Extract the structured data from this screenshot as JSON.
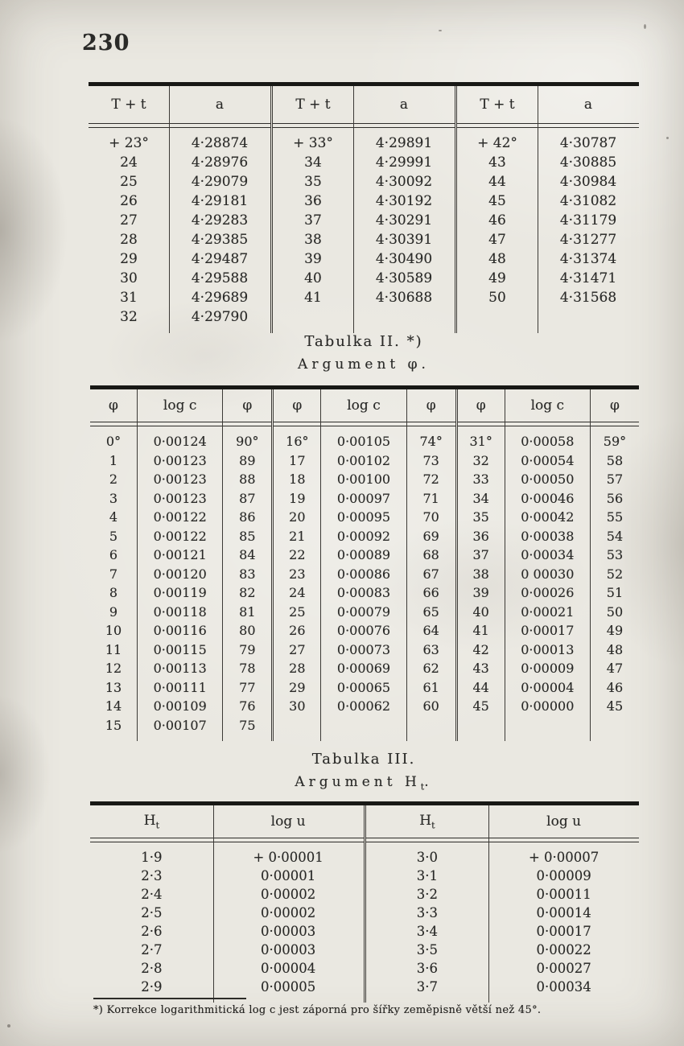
{
  "page_number": "230",
  "table1": {
    "headers": [
      "T + t",
      "a",
      "T + t",
      "a",
      "T + t",
      "a"
    ],
    "groups": [
      {
        "rows": [
          [
            "+ 23°",
            "4·28874"
          ],
          [
            "24",
            "4·28976"
          ],
          [
            "25",
            "4·29079"
          ],
          [
            "26",
            "4·29181"
          ],
          [
            "27",
            "4·29283"
          ],
          [
            "28",
            "4·29385"
          ],
          [
            "29",
            "4·29487"
          ],
          [
            "30",
            "4·29588"
          ],
          [
            "31",
            "4·29689"
          ],
          [
            "32",
            "4·29790"
          ]
        ]
      },
      {
        "rows": [
          [
            "+ 33°",
            "4·29891"
          ],
          [
            "34",
            "4·29991"
          ],
          [
            "35",
            "4·30092"
          ],
          [
            "36",
            "4·30192"
          ],
          [
            "37",
            "4·30291"
          ],
          [
            "38",
            "4·30391"
          ],
          [
            "39",
            "4·30490"
          ],
          [
            "40",
            "4·30589"
          ],
          [
            "41",
            "4·30688"
          ]
        ]
      },
      {
        "rows": [
          [
            "+ 42°",
            "4·30787"
          ],
          [
            "43",
            "4·30885"
          ],
          [
            "44",
            "4·30984"
          ],
          [
            "45",
            "4·31082"
          ],
          [
            "46",
            "4·31179"
          ],
          [
            "47",
            "4·31277"
          ],
          [
            "48",
            "4·31374"
          ],
          [
            "49",
            "4·31471"
          ],
          [
            "50",
            "4·31568"
          ]
        ]
      }
    ]
  },
  "table2": {
    "title": "Tabulka II. *)",
    "subtitle": "Argument φ.",
    "headers": [
      "φ",
      "log c",
      "φ",
      "φ",
      "log c",
      "φ",
      "φ",
      "log c",
      "φ"
    ],
    "groups": [
      {
        "rows": [
          [
            "0°",
            "0·00124",
            "90°"
          ],
          [
            "1",
            "0·00123",
            "89"
          ],
          [
            "2",
            "0·00123",
            "88"
          ],
          [
            "3",
            "0·00123",
            "87"
          ],
          [
            "4",
            "0·00122",
            "86"
          ],
          [
            "5",
            "0·00122",
            "85"
          ],
          [
            "6",
            "0·00121",
            "84"
          ],
          [
            "7",
            "0·00120",
            "83"
          ],
          [
            "8",
            "0·00119",
            "82"
          ],
          [
            "9",
            "0·00118",
            "81"
          ],
          [
            "10",
            "0·00116",
            "80"
          ],
          [
            "11",
            "0·00115",
            "79"
          ],
          [
            "12",
            "0·00113",
            "78"
          ],
          [
            "13",
            "0·00111",
            "77"
          ],
          [
            "14",
            "0·00109",
            "76"
          ],
          [
            "15",
            "0·00107",
            "75"
          ]
        ]
      },
      {
        "rows": [
          [
            "16°",
            "0·00105",
            "74°"
          ],
          [
            "17",
            "0·00102",
            "73"
          ],
          [
            "18",
            "0·00100",
            "72"
          ],
          [
            "19",
            "0·00097",
            "71"
          ],
          [
            "20",
            "0·00095",
            "70"
          ],
          [
            "21",
            "0·00092",
            "69"
          ],
          [
            "22",
            "0·00089",
            "68"
          ],
          [
            "23",
            "0·00086",
            "67"
          ],
          [
            "24",
            "0·00083",
            "66"
          ],
          [
            "25",
            "0·00079",
            "65"
          ],
          [
            "26",
            "0·00076",
            "64"
          ],
          [
            "27",
            "0·00073",
            "63"
          ],
          [
            "28",
            "0·00069",
            "62"
          ],
          [
            "29",
            "0·00065",
            "61"
          ],
          [
            "30",
            "0·00062",
            "60"
          ]
        ]
      },
      {
        "rows": [
          [
            "31°",
            "0·00058",
            "59°"
          ],
          [
            "32",
            "0·00054",
            "58"
          ],
          [
            "33",
            "0·00050",
            "57"
          ],
          [
            "34",
            "0·00046",
            "56"
          ],
          [
            "35",
            "0·00042",
            "55"
          ],
          [
            "36",
            "0·00038",
            "54"
          ],
          [
            "37",
            "0·00034",
            "53"
          ],
          [
            "38",
            "0 00030",
            "52"
          ],
          [
            "39",
            "0·00026",
            "51"
          ],
          [
            "40",
            "0·00021",
            "50"
          ],
          [
            "41",
            "0·00017",
            "49"
          ],
          [
            "42",
            "0·00013",
            "48"
          ],
          [
            "43",
            "0·00009",
            "47"
          ],
          [
            "44",
            "0·00004",
            "46"
          ],
          [
            "45",
            "0·00000",
            "45"
          ]
        ]
      }
    ]
  },
  "table3": {
    "title": "Tabulka III.",
    "subtitle_main": "Argument H",
    "subtitle_sub": "t",
    "subtitle_dot": ".",
    "header_h": "H",
    "header_h_sub": "t",
    "header_logu": "log u",
    "groups": [
      {
        "rows": [
          [
            "1·9",
            "+ 0·00001"
          ],
          [
            "2·3",
            "0·00001"
          ],
          [
            "2·4",
            "0·00002"
          ],
          [
            "2·5",
            "0·00002"
          ],
          [
            "2·6",
            "0·00003"
          ],
          [
            "2·7",
            "0·00003"
          ],
          [
            "2·8",
            "0·00004"
          ],
          [
            "2·9",
            "0·00005"
          ]
        ]
      },
      {
        "rows": [
          [
            "3·0",
            "+ 0·00007"
          ],
          [
            "3·1",
            "0·00009"
          ],
          [
            "3·2",
            "0·00011"
          ],
          [
            "3·3",
            "0·00014"
          ],
          [
            "3·4",
            "0·00017"
          ],
          [
            "3·5",
            "0·00022"
          ],
          [
            "3·6",
            "0·00027"
          ],
          [
            "3·7",
            "0·00034"
          ]
        ]
      }
    ]
  },
  "footnote": "*) Korrekce logarithmitická log c jest záporná pro šířky zeměpisně větší než 45°."
}
